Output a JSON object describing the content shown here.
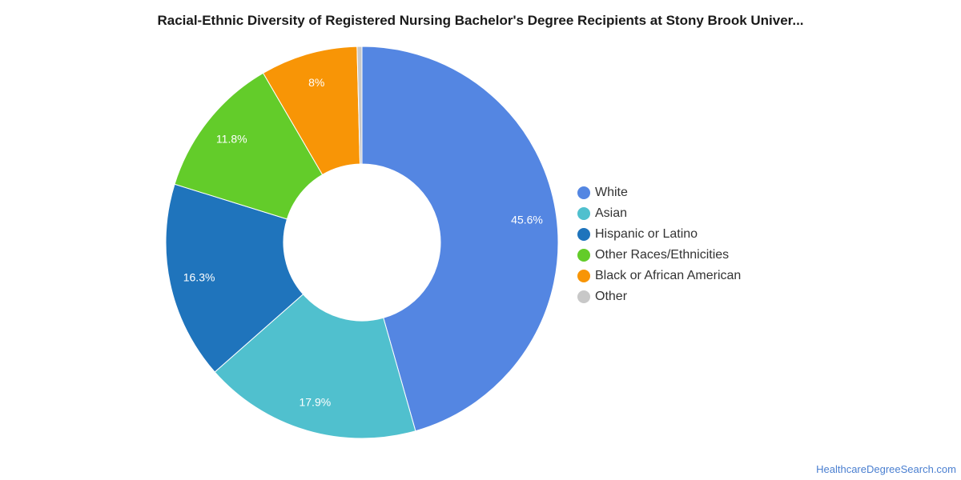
{
  "chart_data": {
    "type": "pie",
    "title": "Racial-Ethnic Diversity of Registered Nursing Bachelor's Degree Recipients at Stony Brook Univer...",
    "slices": [
      {
        "name": "White",
        "value": 45.6,
        "label": "45.6%",
        "color": "#5486e2"
      },
      {
        "name": "Asian",
        "value": 17.9,
        "label": "17.9%",
        "color": "#50c0ce"
      },
      {
        "name": "Hispanic or Latino",
        "value": 16.3,
        "label": "16.3%",
        "color": "#1f74bc"
      },
      {
        "name": "Other Races/Ethnicities",
        "value": 11.8,
        "label": "11.8%",
        "color": "#63cc2a"
      },
      {
        "name": "Black or African American",
        "value": 8,
        "label": "8%",
        "color": "#f89506"
      },
      {
        "name": "Other",
        "value": 0.4,
        "label": "",
        "color": "#c8c8c8"
      }
    ],
    "donut": true,
    "legend_position": "right"
  },
  "watermark": "HealthcareDegreeSearch.com"
}
